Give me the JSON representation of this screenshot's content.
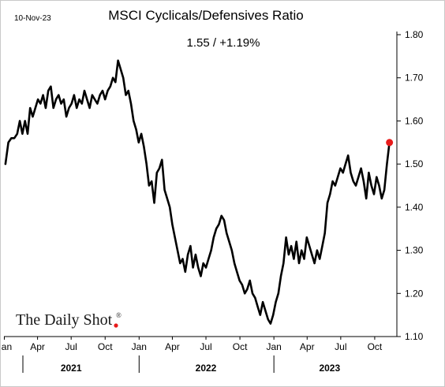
{
  "chart_data": {
    "type": "line",
    "date_label": "10-Nov-23",
    "title": "MSCI Cyclicals/Defensives Ratio",
    "subtitle": "1.55  /  +1.19%",
    "yticks": [
      "1.80",
      "1.70",
      "1.60",
      "1.50",
      "1.40",
      "1.30",
      "1.20",
      "1.10"
    ],
    "ylim": [
      1.1,
      1.8
    ],
    "xlim": [
      "2020-12-31",
      "2023-11-30"
    ],
    "month_ticks": [
      {
        "date": "2021-01-01",
        "label": "Jan"
      },
      {
        "date": "2021-04-01",
        "label": "Apr"
      },
      {
        "date": "2021-07-01",
        "label": "Jul"
      },
      {
        "date": "2021-10-01",
        "label": "Oct"
      },
      {
        "date": "2022-01-01",
        "label": "Jan"
      },
      {
        "date": "2022-04-01",
        "label": "Apr"
      },
      {
        "date": "2022-07-01",
        "label": "Jul"
      },
      {
        "date": "2022-10-01",
        "label": "Oct"
      },
      {
        "date": "2023-01-01",
        "label": "Jan"
      },
      {
        "date": "2023-04-01",
        "label": "Apr"
      },
      {
        "date": "2023-07-01",
        "label": "Jul"
      },
      {
        "date": "2023-10-01",
        "label": "Oct"
      }
    ],
    "year_dividers": [
      "2022-01-01",
      "2023-01-01"
    ],
    "year_labels": [
      {
        "date": "2021-07-01",
        "label": "2021"
      },
      {
        "date": "2022-07-01",
        "label": "2022"
      },
      {
        "date": "2023-06-01",
        "label": "2023"
      }
    ],
    "grid": false,
    "line_color": "#000000",
    "last_point_color": "#e81b1b",
    "series": [
      {
        "points": [
          [
            "2021-01-04",
            1.5
          ],
          [
            "2021-01-12",
            1.55
          ],
          [
            "2021-01-20",
            1.56
          ],
          [
            "2021-01-28",
            1.56
          ],
          [
            "2021-02-05",
            1.57
          ],
          [
            "2021-02-12",
            1.6
          ],
          [
            "2021-02-19",
            1.57
          ],
          [
            "2021-02-26",
            1.6
          ],
          [
            "2021-03-05",
            1.57
          ],
          [
            "2021-03-12",
            1.63
          ],
          [
            "2021-03-19",
            1.61
          ],
          [
            "2021-03-26",
            1.63
          ],
          [
            "2021-04-02",
            1.65
          ],
          [
            "2021-04-09",
            1.64
          ],
          [
            "2021-04-16",
            1.66
          ],
          [
            "2021-04-23",
            1.63
          ],
          [
            "2021-04-30",
            1.67
          ],
          [
            "2021-05-07",
            1.68
          ],
          [
            "2021-05-14",
            1.63
          ],
          [
            "2021-05-21",
            1.65
          ],
          [
            "2021-05-28",
            1.66
          ],
          [
            "2021-06-04",
            1.64
          ],
          [
            "2021-06-11",
            1.65
          ],
          [
            "2021-06-18",
            1.61
          ],
          [
            "2021-06-25",
            1.63
          ],
          [
            "2021-07-02",
            1.64
          ],
          [
            "2021-07-09",
            1.66
          ],
          [
            "2021-07-16",
            1.63
          ],
          [
            "2021-07-23",
            1.65
          ],
          [
            "2021-07-30",
            1.64
          ],
          [
            "2021-08-06",
            1.67
          ],
          [
            "2021-08-13",
            1.65
          ],
          [
            "2021-08-20",
            1.63
          ],
          [
            "2021-08-27",
            1.66
          ],
          [
            "2021-09-03",
            1.65
          ],
          [
            "2021-09-10",
            1.64
          ],
          [
            "2021-09-17",
            1.66
          ],
          [
            "2021-09-24",
            1.67
          ],
          [
            "2021-10-01",
            1.65
          ],
          [
            "2021-10-08",
            1.67
          ],
          [
            "2021-10-15",
            1.68
          ],
          [
            "2021-10-22",
            1.7
          ],
          [
            "2021-10-29",
            1.69
          ],
          [
            "2021-11-05",
            1.74
          ],
          [
            "2021-11-12",
            1.72
          ],
          [
            "2021-11-19",
            1.7
          ],
          [
            "2021-11-26",
            1.66
          ],
          [
            "2021-12-03",
            1.67
          ],
          [
            "2021-12-10",
            1.64
          ],
          [
            "2021-12-17",
            1.6
          ],
          [
            "2021-12-24",
            1.58
          ],
          [
            "2021-12-31",
            1.55
          ],
          [
            "2022-01-07",
            1.57
          ],
          [
            "2022-01-14",
            1.54
          ],
          [
            "2022-01-21",
            1.5
          ],
          [
            "2022-01-28",
            1.45
          ],
          [
            "2022-02-04",
            1.46
          ],
          [
            "2022-02-11",
            1.41
          ],
          [
            "2022-02-18",
            1.48
          ],
          [
            "2022-02-25",
            1.49
          ],
          [
            "2022-03-04",
            1.51
          ],
          [
            "2022-03-11",
            1.44
          ],
          [
            "2022-03-18",
            1.42
          ],
          [
            "2022-03-25",
            1.4
          ],
          [
            "2022-04-01",
            1.36
          ],
          [
            "2022-04-08",
            1.33
          ],
          [
            "2022-04-15",
            1.3
          ],
          [
            "2022-04-22",
            1.27
          ],
          [
            "2022-04-29",
            1.28
          ],
          [
            "2022-05-06",
            1.25
          ],
          [
            "2022-05-13",
            1.29
          ],
          [
            "2022-05-20",
            1.31
          ],
          [
            "2022-05-27",
            1.26
          ],
          [
            "2022-06-03",
            1.29
          ],
          [
            "2022-06-10",
            1.26
          ],
          [
            "2022-06-17",
            1.24
          ],
          [
            "2022-06-24",
            1.27
          ],
          [
            "2022-07-01",
            1.26
          ],
          [
            "2022-07-08",
            1.28
          ],
          [
            "2022-07-15",
            1.3
          ],
          [
            "2022-07-22",
            1.33
          ],
          [
            "2022-07-29",
            1.35
          ],
          [
            "2022-08-05",
            1.36
          ],
          [
            "2022-08-12",
            1.38
          ],
          [
            "2022-08-19",
            1.37
          ],
          [
            "2022-08-26",
            1.34
          ],
          [
            "2022-09-02",
            1.32
          ],
          [
            "2022-09-09",
            1.3
          ],
          [
            "2022-09-16",
            1.27
          ],
          [
            "2022-09-23",
            1.25
          ],
          [
            "2022-09-30",
            1.23
          ],
          [
            "2022-10-07",
            1.22
          ],
          [
            "2022-10-14",
            1.2
          ],
          [
            "2022-10-21",
            1.21
          ],
          [
            "2022-10-28",
            1.23
          ],
          [
            "2022-11-04",
            1.2
          ],
          [
            "2022-11-11",
            1.19
          ],
          [
            "2022-11-18",
            1.17
          ],
          [
            "2022-11-25",
            1.15
          ],
          [
            "2022-12-02",
            1.18
          ],
          [
            "2022-12-09",
            1.16
          ],
          [
            "2022-12-16",
            1.14
          ],
          [
            "2022-12-23",
            1.13
          ],
          [
            "2022-12-30",
            1.15
          ],
          [
            "2023-01-06",
            1.18
          ],
          [
            "2023-01-13",
            1.2
          ],
          [
            "2023-01-20",
            1.24
          ],
          [
            "2023-01-27",
            1.27
          ],
          [
            "2023-02-03",
            1.33
          ],
          [
            "2023-02-10",
            1.29
          ],
          [
            "2023-02-17",
            1.31
          ],
          [
            "2023-02-24",
            1.28
          ],
          [
            "2023-03-03",
            1.32
          ],
          [
            "2023-03-10",
            1.27
          ],
          [
            "2023-03-17",
            1.3
          ],
          [
            "2023-03-24",
            1.28
          ],
          [
            "2023-03-31",
            1.33
          ],
          [
            "2023-04-07",
            1.31
          ],
          [
            "2023-04-14",
            1.29
          ],
          [
            "2023-04-21",
            1.27
          ],
          [
            "2023-04-28",
            1.3
          ],
          [
            "2023-05-05",
            1.28
          ],
          [
            "2023-05-12",
            1.31
          ],
          [
            "2023-05-19",
            1.34
          ],
          [
            "2023-05-26",
            1.41
          ],
          [
            "2023-06-02",
            1.43
          ],
          [
            "2023-06-09",
            1.46
          ],
          [
            "2023-06-16",
            1.45
          ],
          [
            "2023-06-23",
            1.47
          ],
          [
            "2023-06-30",
            1.49
          ],
          [
            "2023-07-07",
            1.48
          ],
          [
            "2023-07-14",
            1.5
          ],
          [
            "2023-07-21",
            1.52
          ],
          [
            "2023-07-28",
            1.48
          ],
          [
            "2023-08-04",
            1.46
          ],
          [
            "2023-08-11",
            1.45
          ],
          [
            "2023-08-18",
            1.47
          ],
          [
            "2023-08-25",
            1.49
          ],
          [
            "2023-09-01",
            1.46
          ],
          [
            "2023-09-08",
            1.42
          ],
          [
            "2023-09-15",
            1.48
          ],
          [
            "2023-09-22",
            1.45
          ],
          [
            "2023-09-29",
            1.43
          ],
          [
            "2023-10-06",
            1.47
          ],
          [
            "2023-10-13",
            1.45
          ],
          [
            "2023-10-20",
            1.42
          ],
          [
            "2023-10-27",
            1.44
          ],
          [
            "2023-11-03",
            1.5
          ],
          [
            "2023-11-10",
            1.55
          ]
        ]
      }
    ]
  },
  "branding": {
    "text": "The Daily Shot",
    "registered": "®"
  }
}
